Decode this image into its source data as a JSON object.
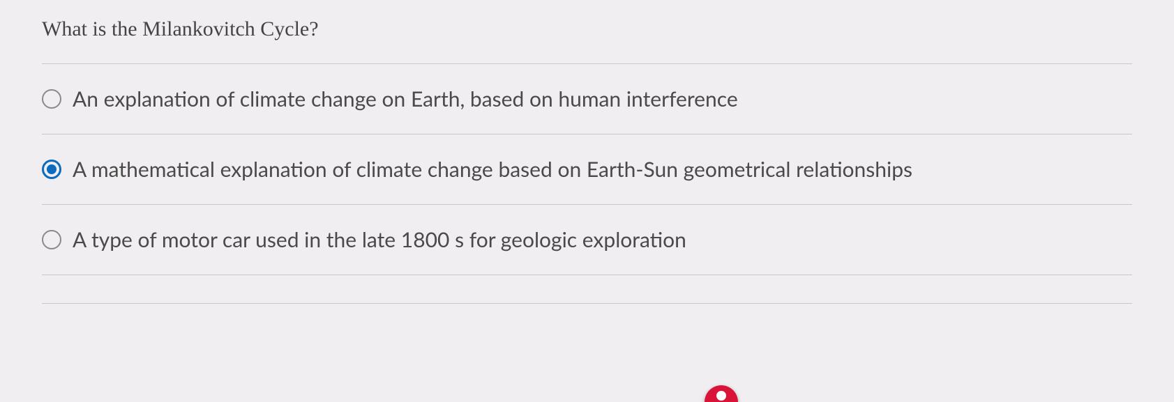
{
  "question": {
    "prompt": "What is the Milankovitch Cycle?",
    "options": [
      {
        "label": "An explanation of climate change on Earth, based on human interference",
        "selected": false
      },
      {
        "label": "A mathematical explanation of climate change based on Earth-Sun geometrical relationships",
        "selected": true
      },
      {
        "label": "A type of motor car used in the late 1800 s for geologic exploration",
        "selected": false
      }
    ]
  },
  "colors": {
    "background": "#f0eef0",
    "text": "#4a4a4a",
    "divider": "#c8c6c8",
    "radio_unselected_border": "#8a8a8a",
    "radio_selected": "#0b6cbf",
    "accent_button": "#d91438"
  },
  "typography": {
    "question_font": "Georgia, serif",
    "question_fontsize": 30,
    "option_font": "Segoe UI, Lato, sans-serif",
    "option_fontsize": 30
  }
}
